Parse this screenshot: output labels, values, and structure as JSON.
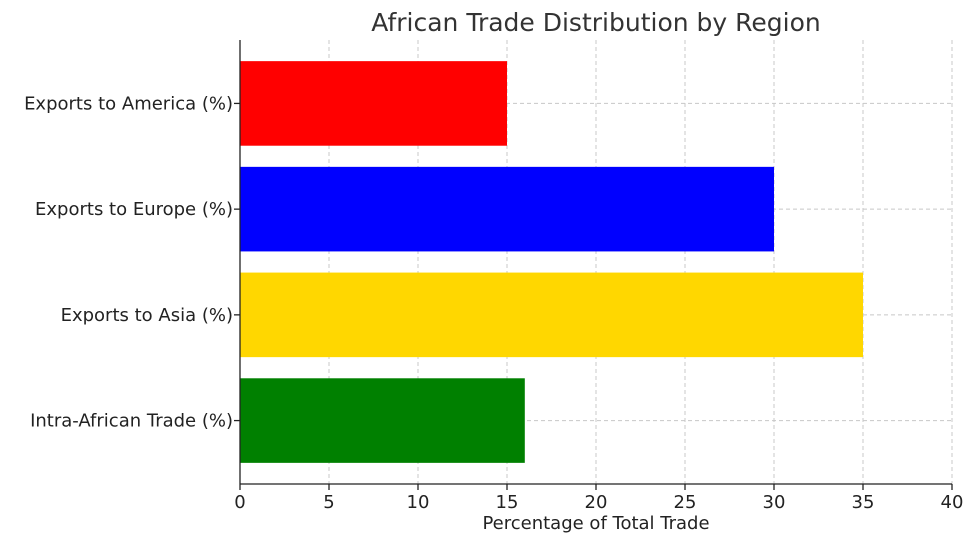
{
  "chart_data": {
    "type": "bar",
    "orientation": "horizontal",
    "title": "African Trade Distribution by Region",
    "xlabel": "Percentage of Total Trade",
    "ylabel": "",
    "xlim": [
      0,
      40
    ],
    "xticks": [
      0,
      5,
      10,
      15,
      20,
      25,
      30,
      35,
      40
    ],
    "grid": true,
    "categories": [
      "Intra-African Trade (%)",
      "Exports to Asia (%)",
      "Exports to Europe (%)",
      "Exports to America (%)"
    ],
    "values": [
      16,
      35,
      30,
      15
    ],
    "colors": [
      "#008000",
      "#FFD700",
      "#0000FF",
      "#FF0000"
    ]
  }
}
